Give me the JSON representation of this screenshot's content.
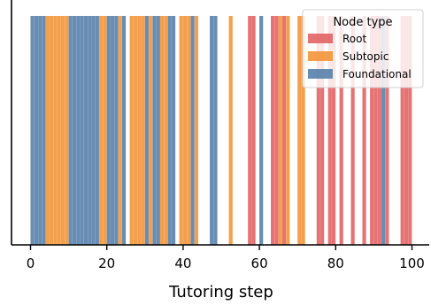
{
  "chart_data": {
    "type": "bar",
    "xlabel": "Tutoring step",
    "ylabel": "",
    "title": "",
    "xlim": [
      -5,
      105
    ],
    "x_ticks": [
      0,
      20,
      40,
      60,
      80,
      100
    ],
    "grid": false,
    "legend": {
      "title": "Node type",
      "placement": "top-right",
      "entries": [
        {
          "name": "Root",
          "color": "#E05A5A"
        },
        {
          "name": "Subtopic",
          "color": "#F28E2B"
        },
        {
          "name": "Foundational",
          "color": "#4E79A7"
        }
      ]
    },
    "colors": {
      "Root": "#E05A5A",
      "Subtopic": "#F28E2B",
      "Foundational": "#4E79A7"
    },
    "steps": [
      {
        "x": 0,
        "type": "Foundational"
      },
      {
        "x": 1,
        "type": "Foundational"
      },
      {
        "x": 2,
        "type": "Foundational"
      },
      {
        "x": 3,
        "type": "Foundational"
      },
      {
        "x": 4,
        "type": "Subtopic"
      },
      {
        "x": 5,
        "type": "Subtopic"
      },
      {
        "x": 6,
        "type": "Subtopic"
      },
      {
        "x": 7,
        "type": "Subtopic"
      },
      {
        "x": 8,
        "type": "Subtopic"
      },
      {
        "x": 9,
        "type": "Subtopic"
      },
      {
        "x": 10,
        "type": "Foundational"
      },
      {
        "x": 11,
        "type": "Foundational"
      },
      {
        "x": 12,
        "type": "Foundational"
      },
      {
        "x": 13,
        "type": "Foundational"
      },
      {
        "x": 14,
        "type": "Foundational"
      },
      {
        "x": 15,
        "type": "Foundational"
      },
      {
        "x": 16,
        "type": "Foundational"
      },
      {
        "x": 17,
        "type": "Foundational"
      },
      {
        "x": 18,
        "type": "Subtopic"
      },
      {
        "x": 19,
        "type": "Subtopic"
      },
      {
        "x": 20,
        "type": "Foundational"
      },
      {
        "x": 21,
        "type": "Foundational"
      },
      {
        "x": 22,
        "type": "Foundational"
      },
      {
        "x": 23,
        "type": "Subtopic"
      },
      {
        "x": 24,
        "type": "Foundational"
      },
      {
        "x": 26,
        "type": "Subtopic"
      },
      {
        "x": 27,
        "type": "Subtopic"
      },
      {
        "x": 28,
        "type": "Subtopic"
      },
      {
        "x": 29,
        "type": "Subtopic"
      },
      {
        "x": 30,
        "type": "Foundational"
      },
      {
        "x": 31,
        "type": "Subtopic"
      },
      {
        "x": 32,
        "type": "Foundational"
      },
      {
        "x": 33,
        "type": "Foundational"
      },
      {
        "x": 34,
        "type": "Subtopic"
      },
      {
        "x": 35,
        "type": "Subtopic"
      },
      {
        "x": 36,
        "type": "Foundational"
      },
      {
        "x": 37,
        "type": "Foundational"
      },
      {
        "x": 39,
        "type": "Subtopic"
      },
      {
        "x": 40,
        "type": "Subtopic"
      },
      {
        "x": 41,
        "type": "Subtopic"
      },
      {
        "x": 42,
        "type": "Foundational"
      },
      {
        "x": 43,
        "type": "Subtopic"
      },
      {
        "x": 47,
        "type": "Foundational"
      },
      {
        "x": 48,
        "type": "Foundational"
      },
      {
        "x": 52,
        "type": "Subtopic"
      },
      {
        "x": 57,
        "type": "Root"
      },
      {
        "x": 58,
        "type": "Root"
      },
      {
        "x": 60,
        "type": "Foundational"
      },
      {
        "x": 63,
        "type": "Root"
      },
      {
        "x": 64,
        "type": "Root"
      },
      {
        "x": 65,
        "type": "Subtopic"
      },
      {
        "x": 66,
        "type": "Root"
      },
      {
        "x": 67,
        "type": "Subtopic"
      },
      {
        "x": 70,
        "type": "Subtopic"
      },
      {
        "x": 71,
        "type": "Subtopic"
      },
      {
        "x": 75,
        "type": "Root"
      },
      {
        "x": 76,
        "type": "Root"
      },
      {
        "x": 78,
        "type": "Root"
      },
      {
        "x": 79,
        "type": "Root"
      },
      {
        "x": 81,
        "type": "Root"
      },
      {
        "x": 84,
        "type": "Root"
      },
      {
        "x": 87,
        "type": "Root"
      },
      {
        "x": 89,
        "type": "Root"
      },
      {
        "x": 90,
        "type": "Root"
      },
      {
        "x": 91,
        "type": "Root"
      },
      {
        "x": 92,
        "type": "Foundational"
      },
      {
        "x": 93,
        "type": "Root"
      },
      {
        "x": 97,
        "type": "Root"
      },
      {
        "x": 98,
        "type": "Root"
      },
      {
        "x": 99,
        "type": "Root"
      }
    ]
  }
}
